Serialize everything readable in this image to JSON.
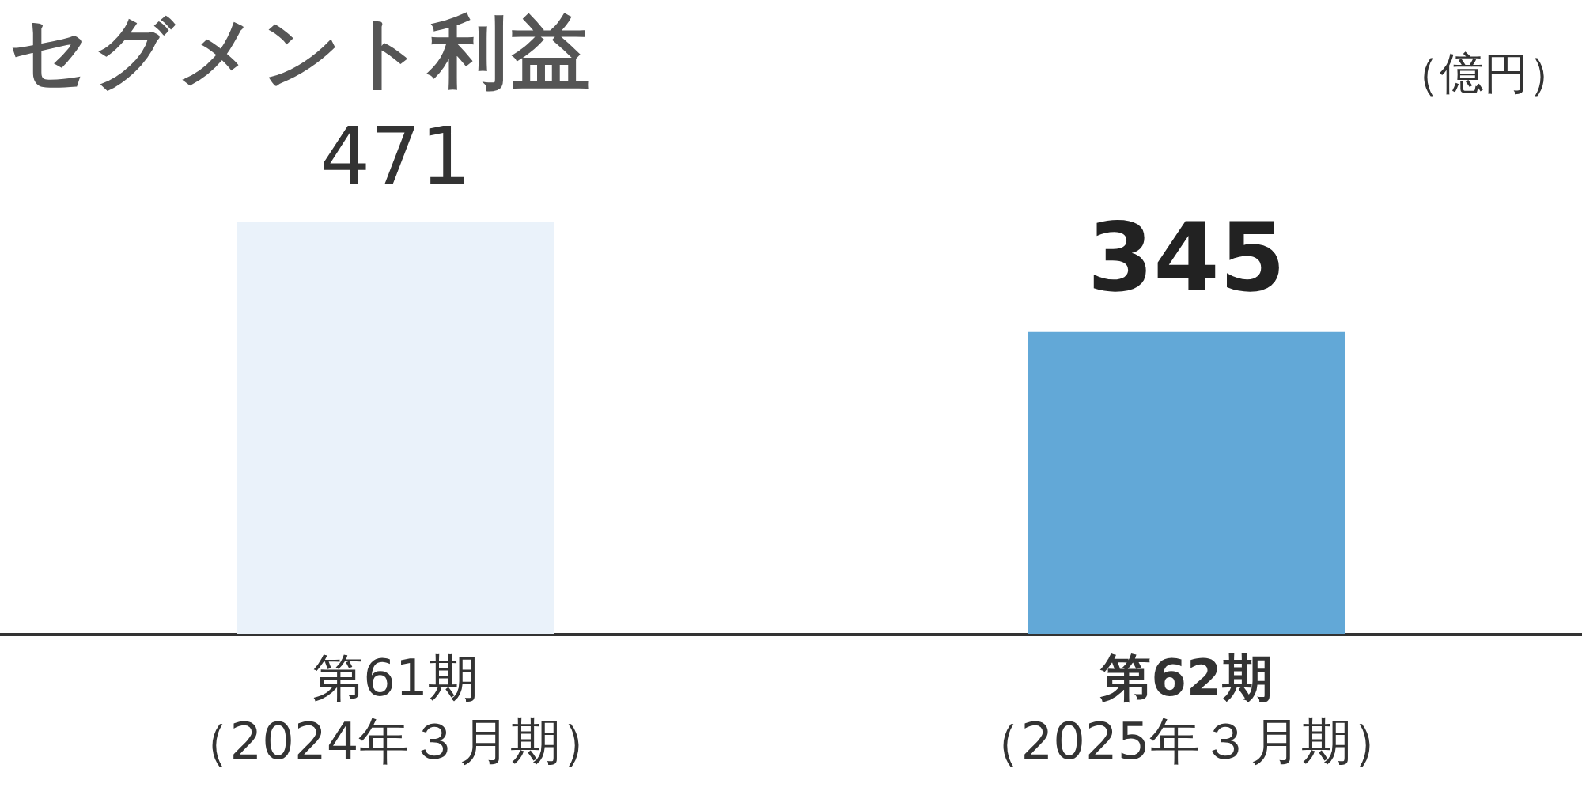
{
  "chart_data": {
    "type": "bar",
    "title": "セグメント利益",
    "annotations": [
      "（億円）"
    ],
    "categories": [
      "第61期（2024年３月期）",
      "第62期（2025年３月期）"
    ],
    "values": [
      471,
      345
    ],
    "colors": [
      "#eaf2fa",
      "#62a8d7"
    ],
    "data_labels": true,
    "grid": false,
    "legend": false
  }
}
